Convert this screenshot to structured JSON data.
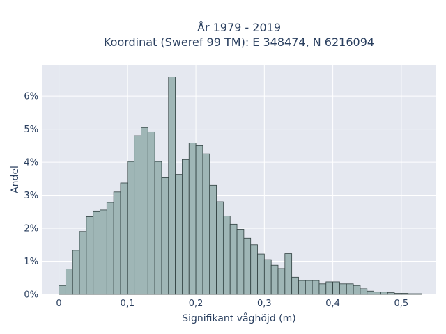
{
  "chart_data": {
    "type": "bar",
    "title_line1": "År 1979 - 2019",
    "title_line2": "Koordinat (Sweref 99 TM): E 348474, N 6216094",
    "xlabel": "Signifikant våghöjd (m)",
    "ylabel": "Andel",
    "xlim": [
      -0.025,
      0.55
    ],
    "ylim": [
      0,
      6.95
    ],
    "x_ticks": [
      {
        "value": 0,
        "label": "0"
      },
      {
        "value": 0.1,
        "label": "0,1"
      },
      {
        "value": 0.2,
        "label": "0,2"
      },
      {
        "value": 0.3,
        "label": "0,3"
      },
      {
        "value": 0.4,
        "label": "0,4"
      },
      {
        "value": 0.5,
        "label": "0,5"
      }
    ],
    "y_ticks": [
      {
        "value": 0,
        "label": "0%"
      },
      {
        "value": 1,
        "label": "1%"
      },
      {
        "value": 2,
        "label": "2%"
      },
      {
        "value": 3,
        "label": "3%"
      },
      {
        "value": 4,
        "label": "4%"
      },
      {
        "value": 5,
        "label": "5%"
      },
      {
        "value": 6,
        "label": "6%"
      }
    ],
    "bin_width": 0.01,
    "bins_start": [
      0.0,
      0.01,
      0.02,
      0.03,
      0.04,
      0.05,
      0.06,
      0.07,
      0.08,
      0.09,
      0.1,
      0.11,
      0.12,
      0.13,
      0.14,
      0.15,
      0.16,
      0.17,
      0.18,
      0.19,
      0.2,
      0.21,
      0.22,
      0.23,
      0.24,
      0.25,
      0.26,
      0.27,
      0.28,
      0.29,
      0.3,
      0.31,
      0.32,
      0.33,
      0.34,
      0.35,
      0.36,
      0.37,
      0.38,
      0.39,
      0.4,
      0.41,
      0.42,
      0.43,
      0.44,
      0.45,
      0.46,
      0.47,
      0.48,
      0.49,
      0.5,
      0.51,
      0.52
    ],
    "values": [
      0.27,
      0.77,
      1.33,
      1.9,
      2.35,
      2.52,
      2.55,
      2.78,
      3.1,
      3.37,
      4.02,
      4.8,
      5.05,
      4.92,
      4.02,
      3.53,
      6.58,
      3.63,
      4.08,
      4.58,
      4.5,
      4.25,
      3.3,
      2.8,
      2.37,
      2.12,
      1.97,
      1.7,
      1.5,
      1.22,
      1.05,
      0.88,
      0.78,
      1.23,
      0.52,
      0.42,
      0.42,
      0.42,
      0.32,
      0.38,
      0.38,
      0.32,
      0.32,
      0.27,
      0.17,
      0.1,
      0.07,
      0.07,
      0.05,
      0.03,
      0.03,
      0.02,
      0.02
    ],
    "grid": true,
    "colors": {
      "bar_fill": "#9fb6b6",
      "bar_stroke": "#2f3f3f",
      "plot_bg": "#e5e8f0",
      "grid": "#ffffff"
    }
  }
}
